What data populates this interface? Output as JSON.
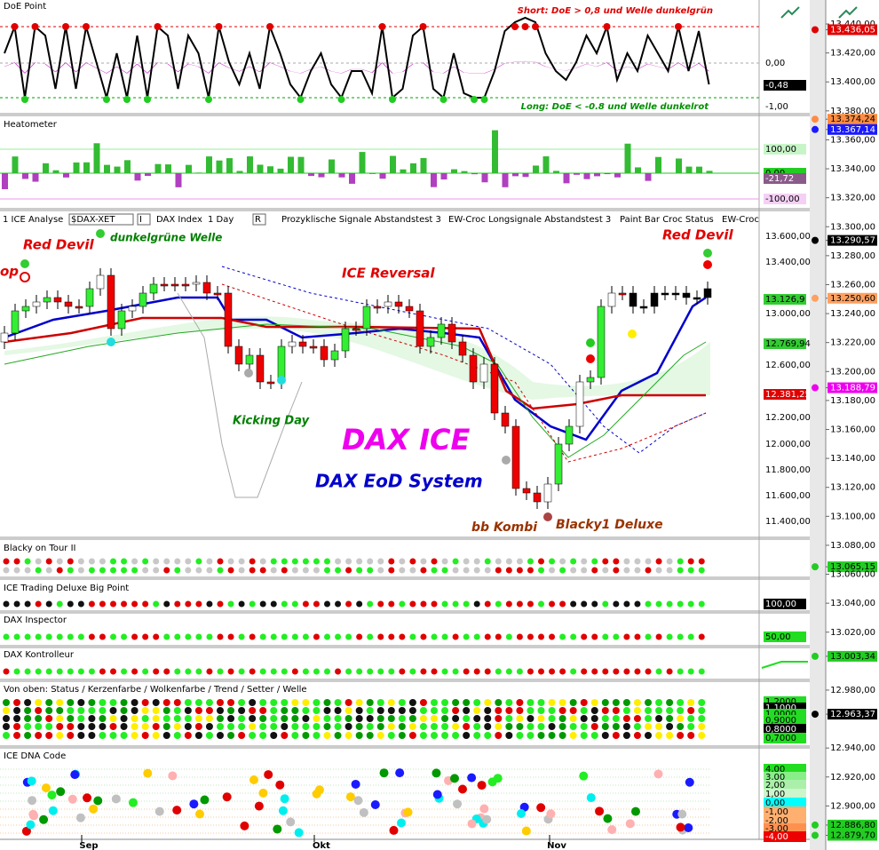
{
  "doe_panel": {
    "title": "DoE Point",
    "short_note": "Short: DoE > 0,8 und Welle dunkelgrün",
    "long_note": "Long: DoE < -0.8 und Welle dunkelrot",
    "scale_labels": [
      {
        "text": "0,00"
      },
      {
        "text": "-0,48",
        "color": "#000000"
      },
      {
        "text": "-1,00"
      }
    ]
  },
  "heatometer_panel": {
    "title": "Heatometer",
    "scale_labels": [
      {
        "text": "100,00",
        "color": "#c8f5c8"
      },
      {
        "text": "0,00",
        "color": "#22cc22"
      },
      {
        "text": "-21,72",
        "color": "#8a5a8a"
      },
      {
        "text": "-100,00",
        "color": "#f5d0f5"
      }
    ]
  },
  "main_panel": {
    "toolbar": [
      "1 ICE Analyse",
      "$DAX-XET",
      "I",
      "DAX Index",
      "1 Day",
      "R",
      "Prozyklische Signale Abstandstest 3",
      "EW-Croc Longsignale Abstandstest 3",
      "Paint Bar Croc Status",
      "EW-Croc"
    ],
    "annotations": [
      {
        "text": "Red Devil",
        "color": "#e00000"
      },
      {
        "text": "dunkelgrüne Welle",
        "color": "#008000"
      },
      {
        "text": "op",
        "color": "#e00000"
      },
      {
        "text": "ICE Reversal",
        "color": "#e00000"
      },
      {
        "text": "Red Devil",
        "color": "#e00000"
      },
      {
        "text": "Kicking Day",
        "color": "#008000"
      },
      {
        "text": "DAX ICE",
        "color": "#ee00ee"
      },
      {
        "text": "DAX EoD System",
        "color": "#0000cc"
      },
      {
        "text": "bb Kombi",
        "color": "#993300"
      },
      {
        "text": "Blacky1 Deluxe",
        "color": "#993300"
      }
    ],
    "scale_labels": [
      {
        "text": "13.600,00"
      },
      {
        "text": "13.400,00"
      },
      {
        "text": "13.126,9",
        "color": "#33cc33"
      },
      {
        "text": "13.000,00"
      },
      {
        "text": "12.769,94",
        "color": "#33cc33"
      },
      {
        "text": "12.600,00"
      },
      {
        "text": "12.381,25",
        "color": "#e00000"
      },
      {
        "text": "12.200,00"
      },
      {
        "text": "12.000,00"
      },
      {
        "text": "11.800,00"
      },
      {
        "text": "11.600,00"
      },
      {
        "text": "11.400,00"
      }
    ]
  },
  "indicator_panels": [
    {
      "title": "Blacky on Tour II"
    },
    {
      "title": "ICE Trading Deluxe Big Point",
      "scale_labels": [
        {
          "text": "100,00",
          "color": "#000000"
        }
      ]
    },
    {
      "title": "DAX Inspector",
      "scale_labels": [
        {
          "text": "50,00",
          "color": "#22dd22"
        }
      ]
    },
    {
      "title": "DAX Kontrolleur"
    },
    {
      "title": "Von oben: Status / Kerzenfarbe / Wolkenfarbe / Trend / Setter / Welle",
      "scale_labels": [
        {
          "text": "1,2000",
          "color": "#22dd22"
        },
        {
          "text": "1,1000",
          "color": "#000000"
        },
        {
          "text": "1,0000",
          "color": "#22dd22"
        },
        {
          "text": "0,9000",
          "color": "#22dd22"
        },
        {
          "text": "0,8000",
          "color": "#000000"
        },
        {
          "text": "0,7000",
          "color": "#22dd22"
        }
      ]
    },
    {
      "title": "ICE DNA Code",
      "scale_labels": [
        {
          "text": "4,00",
          "color": "#22dd22"
        },
        {
          "text": "3,00",
          "color": "#88ee88"
        },
        {
          "text": "2,00",
          "color": "#aaf0aa"
        },
        {
          "text": "1,00",
          "color": "#ccf5cc"
        },
        {
          "text": "0,00",
          "color": "#00ffff"
        },
        {
          "text": "-1,00",
          "color": "#ffb070"
        },
        {
          "text": "-2,00",
          "color": "#ffb070"
        },
        {
          "text": "-3,00",
          "color": "#ff9050"
        },
        {
          "text": "-4,00",
          "color": "#ee0000"
        }
      ]
    }
  ],
  "price_axis": [
    {
      "text": "13.440,00"
    },
    {
      "text": "13.436,05",
      "color": "#e00000"
    },
    {
      "text": "13.420,00"
    },
    {
      "text": "13.400,00"
    },
    {
      "text": "13.380,00"
    },
    {
      "text": "13.374,24",
      "color": "#ff8c40"
    },
    {
      "text": "13.367,14",
      "color": "#1a1aff"
    },
    {
      "text": "13.360,00"
    },
    {
      "text": "13.340,00"
    },
    {
      "text": "13.320,00"
    },
    {
      "text": "13.300,00"
    },
    {
      "text": "13.290,57",
      "color": "#000000"
    },
    {
      "text": "13.280,00"
    },
    {
      "text": "13.260,00"
    },
    {
      "text": "13.250,60",
      "color": "#ffa060"
    },
    {
      "text": "13.240,00"
    },
    {
      "text": "13.220,00"
    },
    {
      "text": "13.200,00"
    },
    {
      "text": "13.188,79",
      "color": "#ee00ee"
    },
    {
      "text": "13.180,00"
    },
    {
      "text": "13.160,00"
    },
    {
      "text": "13.140,00"
    },
    {
      "text": "13.120,00"
    },
    {
      "text": "13.100,00"
    },
    {
      "text": "13.080,00"
    },
    {
      "text": "13.065,15",
      "color": "#22cc22"
    },
    {
      "text": "13.060,00"
    },
    {
      "text": "13.040,00"
    },
    {
      "text": "13.020,00"
    },
    {
      "text": "13.003,34",
      "color": "#22cc22"
    },
    {
      "text": "12.980,00"
    },
    {
      "text": "12.963,37",
      "color": "#000000"
    },
    {
      "text": "12.940,00"
    },
    {
      "text": "12.920,00"
    },
    {
      "text": "12.900,00"
    },
    {
      "text": "12.886,80",
      "color": "#22cc22"
    },
    {
      "text": "12.879,70",
      "color": "#22cc22"
    }
  ],
  "time_axis": [
    "Sep",
    "Okt",
    "Nov"
  ]
}
